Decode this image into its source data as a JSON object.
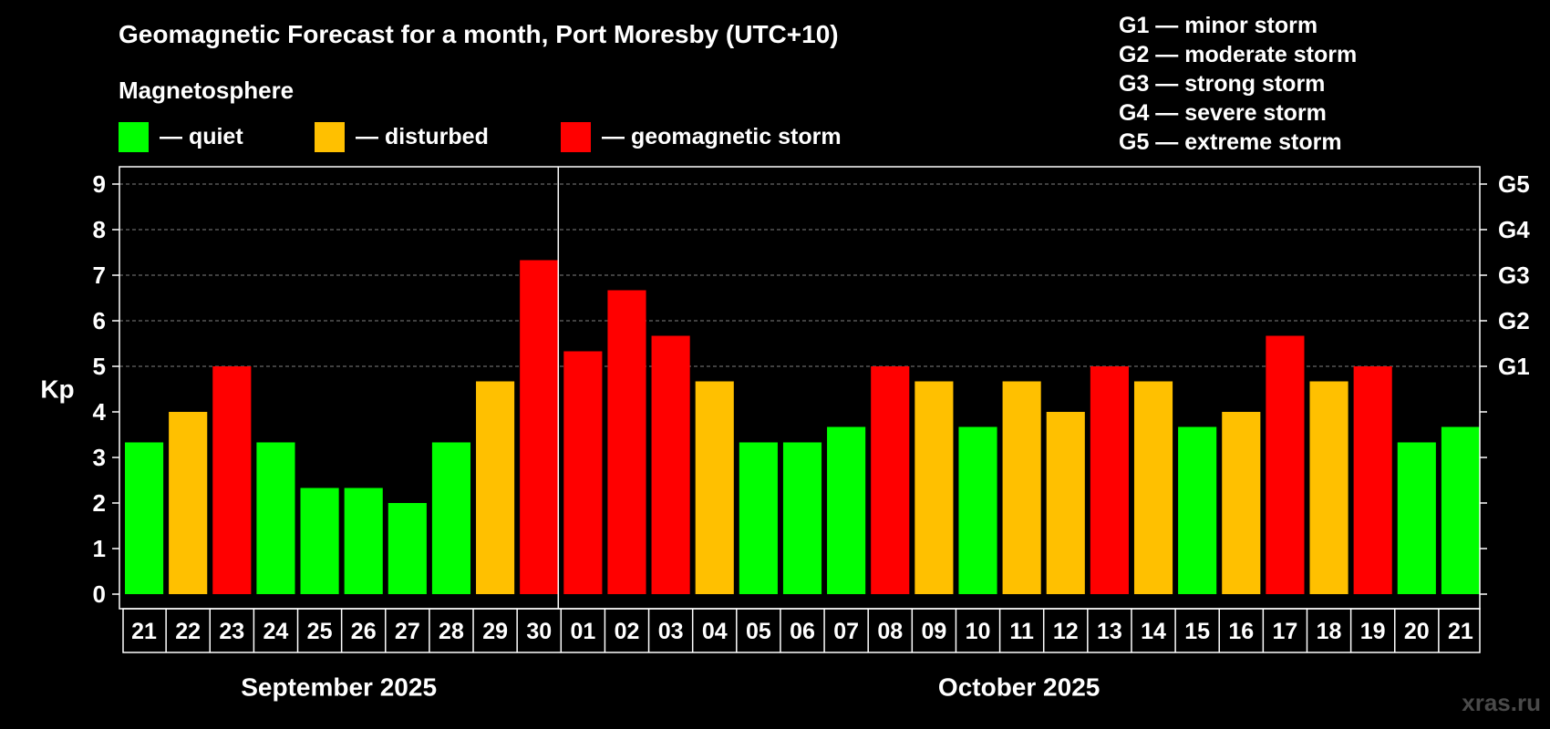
{
  "title": "Geomagnetic Forecast for a month, Port Moresby (UTC+10)",
  "magnetosphere_label": "Magnetosphere",
  "legend": [
    {
      "label": "— quiet",
      "color": "#00ff00"
    },
    {
      "label": "— disturbed",
      "color": "#ffc000"
    },
    {
      "label": "— geomagnetic storm",
      "color": "#ff0000"
    }
  ],
  "g_legend": [
    "G1 — minor storm",
    "G2 — moderate storm",
    "G3 — strong storm",
    "G4 — severe storm",
    "G5 — extreme storm"
  ],
  "watermark": "xras.ru",
  "colors": {
    "quiet": "#00ff00",
    "disturbed": "#ffc000",
    "storm": "#ff0000"
  },
  "chart_data": {
    "type": "bar",
    "ylabel": "Kp",
    "ylim": [
      0,
      9
    ],
    "yticks": [
      0,
      1,
      2,
      3,
      4,
      5,
      6,
      7,
      8,
      9
    ],
    "right_axis_labels": [
      {
        "value": 5,
        "label": "G1"
      },
      {
        "value": 6,
        "label": "G2"
      },
      {
        "value": 7,
        "label": "G3"
      },
      {
        "value": 8,
        "label": "G4"
      },
      {
        "value": 9,
        "label": "G5"
      }
    ],
    "grid": "horizontal dashed at Kp 5-9",
    "categories": [
      "21",
      "22",
      "23",
      "24",
      "25",
      "26",
      "27",
      "28",
      "29",
      "30",
      "01",
      "02",
      "03",
      "04",
      "05",
      "06",
      "07",
      "08",
      "09",
      "10",
      "11",
      "12",
      "13",
      "14",
      "15",
      "16",
      "17",
      "18",
      "19",
      "20",
      "21"
    ],
    "values": [
      3.33,
      4,
      5,
      3.33,
      2.33,
      2.33,
      2,
      3.33,
      4.67,
      7.33,
      5.33,
      6.67,
      5.67,
      4.67,
      3.33,
      3.33,
      3.67,
      5,
      4.67,
      3.67,
      4.67,
      4,
      5,
      4.67,
      3.67,
      4,
      5.67,
      4.67,
      5,
      3.33,
      3.67
    ],
    "status": [
      "quiet",
      "disturbed",
      "storm",
      "quiet",
      "quiet",
      "quiet",
      "quiet",
      "quiet",
      "disturbed",
      "storm",
      "storm",
      "storm",
      "storm",
      "disturbed",
      "quiet",
      "quiet",
      "quiet",
      "storm",
      "disturbed",
      "quiet",
      "disturbed",
      "disturbed",
      "storm",
      "disturbed",
      "quiet",
      "disturbed",
      "storm",
      "disturbed",
      "storm",
      "quiet",
      "quiet"
    ],
    "months": [
      {
        "label": "September 2025",
        "days": 10
      },
      {
        "label": "October 2025",
        "days": 21
      }
    ]
  }
}
